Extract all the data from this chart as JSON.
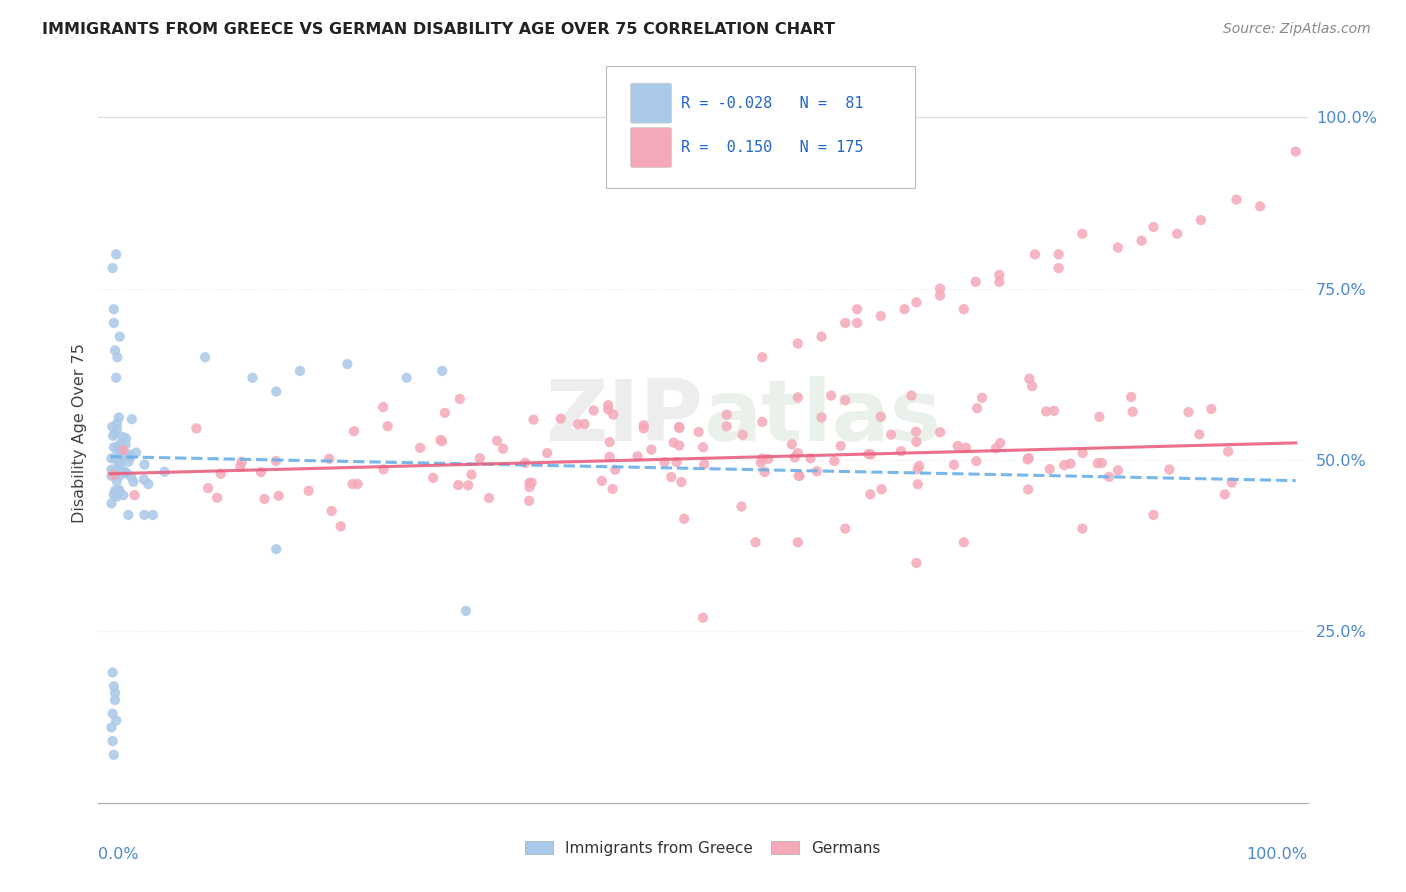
{
  "title": "IMMIGRANTS FROM GREECE VS GERMAN DISABILITY AGE OVER 75 CORRELATION CHART",
  "source": "Source: ZipAtlas.com",
  "legend_label1": "Immigrants from Greece",
  "legend_label2": "Germans",
  "r1": -0.028,
  "n1": 81,
  "r2": 0.15,
  "n2": 175,
  "color_blue": "#aac8e8",
  "color_pink": "#f5a8b8",
  "color_line_blue": "#6ab0e8",
  "color_line_pink": "#e86080",
  "watermark": "ZIPAtlas",
  "ylabel": "Disability Age Over 75",
  "background_color": "#ffffff",
  "grid_color": "#e8e8e8",
  "right_yticks": [
    0.25,
    0.5,
    0.75,
    1.0
  ],
  "right_yticklabels": [
    "25.0%",
    "50.0%",
    "75.0%",
    "100.0%"
  ],
  "xlim": [
    -0.01,
    1.01
  ],
  "ylim": [
    0.0,
    1.08
  ]
}
